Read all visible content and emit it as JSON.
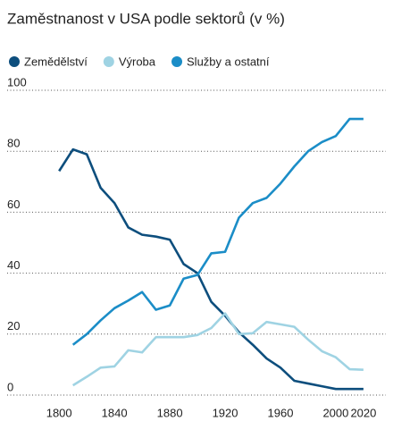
{
  "chart_data": {
    "type": "line",
    "subtitle": "Zaměstnanost v USA podle sektorů (v %)",
    "x": [
      1800,
      1810,
      1820,
      1830,
      1840,
      1850,
      1860,
      1870,
      1880,
      1890,
      1900,
      1910,
      1920,
      1930,
      1940,
      1950,
      1960,
      1970,
      1980,
      1990,
      2000,
      2010,
      2020
    ],
    "series": [
      {
        "name": "Zemědělství",
        "color": "#0d4e7d",
        "values": [
          73.5,
          80.6,
          79,
          68,
          63,
          55,
          52.6,
          52,
          51,
          43,
          40,
          30.6,
          26,
          20.6,
          16.5,
          12,
          9,
          4.7,
          3.8,
          2.9,
          2,
          2,
          2
        ]
      },
      {
        "name": "Výroba",
        "color": "#9fd3e3",
        "values": [
          null,
          3.2,
          6,
          9,
          9.4,
          14.7,
          14,
          19,
          19,
          19,
          19.7,
          22,
          26.8,
          20,
          20.3,
          24,
          23.2,
          22.4,
          18.2,
          14.4,
          12.4,
          8.5,
          8.3
        ]
      },
      {
        "name": "Služby a ostatní",
        "color": "#1b8dc7",
        "values": [
          null,
          16.5,
          20,
          24.5,
          28.5,
          31,
          33.8,
          28,
          29.4,
          38.2,
          39.4,
          46.5,
          47,
          58.2,
          63,
          64.7,
          69.4,
          75,
          80,
          83,
          85,
          90.6,
          90.6
        ]
      }
    ],
    "xlim": [
      1796,
      2022
    ],
    "xticks": [
      1800,
      1840,
      1880,
      1920,
      1960,
      2000,
      2020
    ],
    "ylim": [
      0,
      100
    ],
    "yticks": [
      0,
      20,
      40,
      60,
      80,
      100
    ],
    "grid": true
  }
}
